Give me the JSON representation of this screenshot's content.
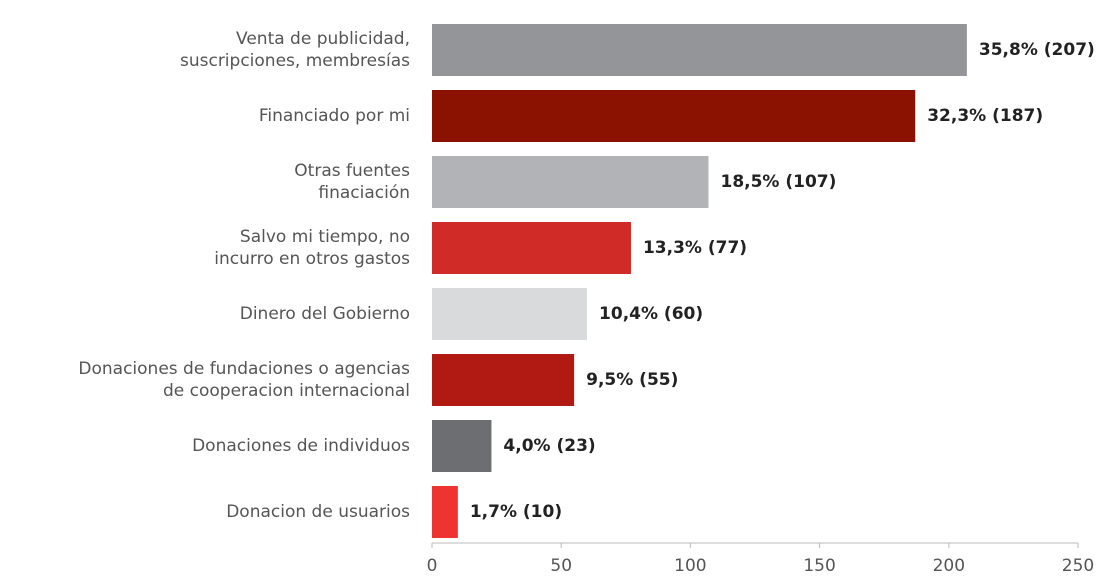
{
  "chart_data": {
    "type": "bar",
    "orientation": "horizontal",
    "categories": [
      "Venta de publicidad,\nsuscripciones, membresías",
      "Financiado por mi",
      "Otras fuentes\nfinaciación",
      "Salvo mi tiempo, no\nincurro en otros gastos",
      "Dinero del Gobierno",
      "Donaciones de fundaciones o agencias\nde cooperacion internacional",
      "Donaciones de individuos",
      "Donacion de usuarios"
    ],
    "values": [
      207,
      187,
      107,
      77,
      60,
      55,
      23,
      10
    ],
    "value_labels": [
      "35,8% (207)",
      "32,3% (187)",
      "18,5% (107)",
      "13,3% (77)",
      "10,4% (60)",
      "9,5% (55)",
      "4,0% (23)",
      "1,7% (10)"
    ],
    "colors": [
      "#939598",
      "#8b1100",
      "#b1b3b6",
      "#d12b27",
      "#d9dadb",
      "#b01a12",
      "#6d6e71",
      "#ee3430"
    ],
    "xlim": [
      0,
      250
    ],
    "xticks": [
      0,
      50,
      100,
      150,
      200,
      250
    ]
  }
}
